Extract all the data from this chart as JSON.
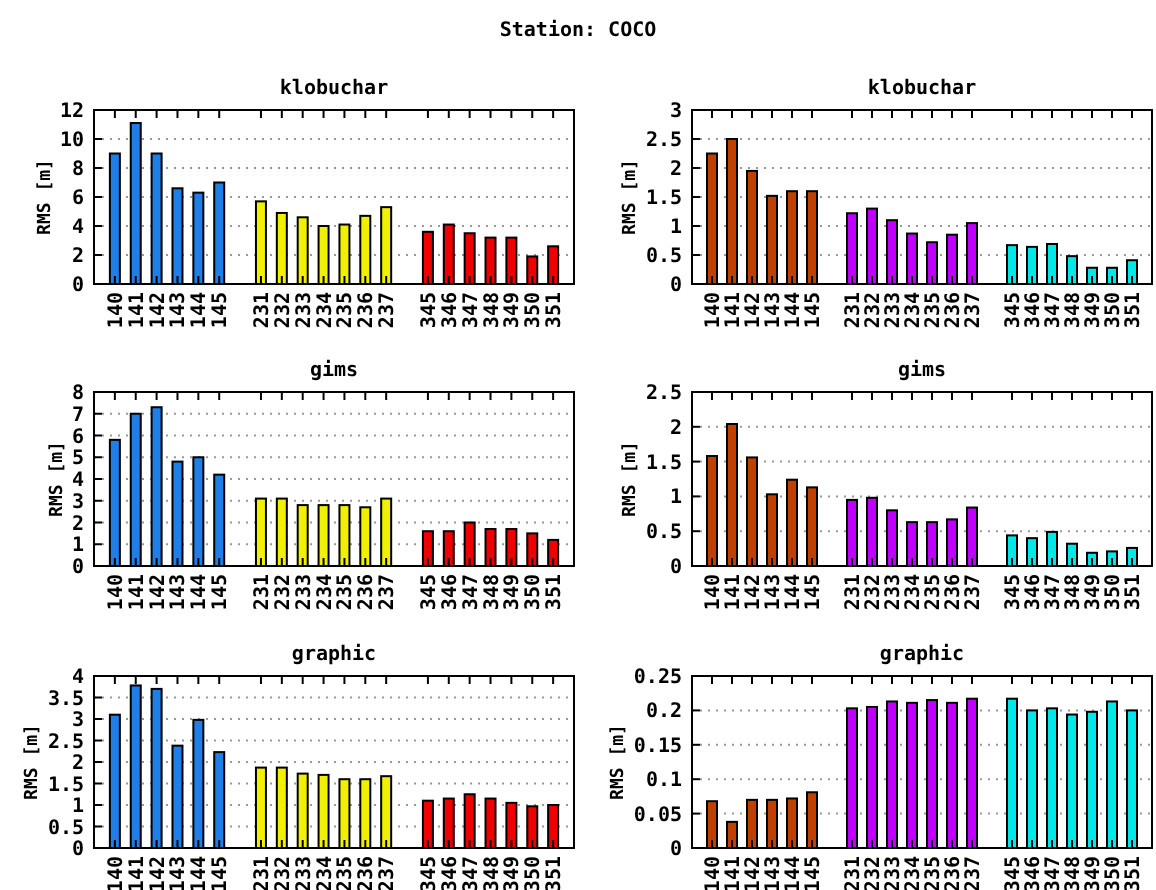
{
  "chart_data": [
    {
      "type": "bar",
      "title": "klobuchar",
      "ylabel": "RMS [m]",
      "annotations": [
        "Station: COCO"
      ],
      "grid": "y",
      "categories": [
        "140",
        "141",
        "142",
        "143",
        "144",
        "145",
        null,
        "231",
        "232",
        "233",
        "234",
        "235",
        "236",
        "237",
        null,
        "345",
        "346",
        "347",
        "348",
        "349",
        "350",
        "351"
      ],
      "ylim": [
        0,
        12
      ],
      "yticks": [
        0,
        2,
        4,
        6,
        8,
        10,
        12
      ],
      "series": [
        {
          "color": "#1e7fe8",
          "values": [
            9.0,
            11.1,
            9.0,
            6.6,
            6.3,
            7.0,
            null,
            null,
            null,
            null,
            null,
            null,
            null,
            null,
            null,
            null,
            null,
            null,
            null,
            null,
            null,
            null
          ]
        },
        {
          "color": "#f0f000",
          "values": [
            null,
            null,
            null,
            null,
            null,
            null,
            null,
            5.7,
            4.9,
            4.6,
            4.0,
            4.1,
            4.7,
            5.3,
            null,
            null,
            null,
            null,
            null,
            null,
            null,
            null
          ]
        },
        {
          "color": "#f00000",
          "values": [
            null,
            null,
            null,
            null,
            null,
            null,
            null,
            null,
            null,
            null,
            null,
            null,
            null,
            null,
            null,
            3.6,
            4.1,
            3.5,
            3.2,
            3.2,
            1.9,
            2.6
          ]
        }
      ]
    },
    {
      "type": "bar",
      "title": "klobuchar",
      "ylabel": "RMS [m]",
      "grid": "y",
      "categories": [
        "140",
        "141",
        "142",
        "143",
        "144",
        "145",
        null,
        "231",
        "232",
        "233",
        "234",
        "235",
        "236",
        "237",
        null,
        "345",
        "346",
        "347",
        "348",
        "349",
        "350",
        "351"
      ],
      "ylim": [
        0,
        3
      ],
      "yticks": [
        0,
        0.5,
        1,
        1.5,
        2,
        2.5,
        3
      ],
      "series": [
        {
          "color": "#c04000",
          "values": [
            2.25,
            2.5,
            1.95,
            1.52,
            1.6,
            1.6,
            null,
            null,
            null,
            null,
            null,
            null,
            null,
            null,
            null,
            null,
            null,
            null,
            null,
            null,
            null,
            null
          ]
        },
        {
          "color": "#c000ff",
          "values": [
            null,
            null,
            null,
            null,
            null,
            null,
            null,
            1.22,
            1.3,
            1.1,
            0.87,
            0.72,
            0.85,
            1.05,
            null,
            null,
            null,
            null,
            null,
            null,
            null,
            null
          ]
        },
        {
          "color": "#00e8e8",
          "values": [
            null,
            null,
            null,
            null,
            null,
            null,
            null,
            null,
            null,
            null,
            null,
            null,
            null,
            null,
            null,
            0.67,
            0.64,
            0.69,
            0.48,
            0.28,
            0.28,
            0.41
          ]
        }
      ]
    },
    {
      "type": "bar",
      "title": "gims",
      "ylabel": "RMS [m]",
      "grid": "y",
      "categories": [
        "140",
        "141",
        "142",
        "143",
        "144",
        "145",
        null,
        "231",
        "232",
        "233",
        "234",
        "235",
        "236",
        "237",
        null,
        "345",
        "346",
        "347",
        "348",
        "349",
        "350",
        "351"
      ],
      "ylim": [
        0,
        8
      ],
      "yticks": [
        0,
        1,
        2,
        3,
        4,
        5,
        6,
        7,
        8
      ],
      "series": [
        {
          "color": "#1e7fe8",
          "values": [
            5.8,
            7.0,
            7.3,
            4.8,
            5.0,
            4.2,
            null,
            null,
            null,
            null,
            null,
            null,
            null,
            null,
            null,
            null,
            null,
            null,
            null,
            null,
            null,
            null
          ]
        },
        {
          "color": "#f0f000",
          "values": [
            null,
            null,
            null,
            null,
            null,
            null,
            null,
            3.1,
            3.1,
            2.8,
            2.8,
            2.8,
            2.7,
            3.1,
            null,
            null,
            null,
            null,
            null,
            null,
            null,
            null
          ]
        },
        {
          "color": "#f00000",
          "values": [
            null,
            null,
            null,
            null,
            null,
            null,
            null,
            null,
            null,
            null,
            null,
            null,
            null,
            null,
            null,
            1.6,
            1.6,
            2.0,
            1.7,
            1.7,
            1.5,
            1.2
          ]
        }
      ]
    },
    {
      "type": "bar",
      "title": "gims",
      "ylabel": "RMS [m]",
      "grid": "y",
      "categories": [
        "140",
        "141",
        "142",
        "143",
        "144",
        "145",
        null,
        "231",
        "232",
        "233",
        "234",
        "235",
        "236",
        "237",
        null,
        "345",
        "346",
        "347",
        "348",
        "349",
        "350",
        "351"
      ],
      "ylim": [
        0,
        2.5
      ],
      "yticks": [
        0,
        0.5,
        1,
        1.5,
        2,
        2.5
      ],
      "series": [
        {
          "color": "#c04000",
          "values": [
            1.58,
            2.04,
            1.56,
            1.03,
            1.24,
            1.13,
            null,
            null,
            null,
            null,
            null,
            null,
            null,
            null,
            null,
            null,
            null,
            null,
            null,
            null,
            null,
            null
          ]
        },
        {
          "color": "#c000ff",
          "values": [
            null,
            null,
            null,
            null,
            null,
            null,
            null,
            0.95,
            0.98,
            0.8,
            0.63,
            0.63,
            0.67,
            0.84,
            null,
            null,
            null,
            null,
            null,
            null,
            null,
            null
          ]
        },
        {
          "color": "#00e8e8",
          "values": [
            null,
            null,
            null,
            null,
            null,
            null,
            null,
            null,
            null,
            null,
            null,
            null,
            null,
            null,
            null,
            0.44,
            0.4,
            0.49,
            0.32,
            0.19,
            0.21,
            0.26
          ]
        }
      ]
    },
    {
      "type": "bar",
      "title": "graphic",
      "ylabel": "RMS [m]",
      "grid": "y",
      "categories": [
        "140",
        "141",
        "142",
        "143",
        "144",
        "145",
        null,
        "231",
        "232",
        "233",
        "234",
        "235",
        "236",
        "237",
        null,
        "345",
        "346",
        "347",
        "348",
        "349",
        "350",
        "351"
      ],
      "ylim": [
        0,
        4
      ],
      "yticks": [
        0,
        0.5,
        1,
        1.5,
        2,
        2.5,
        3,
        3.5,
        4
      ],
      "series": [
        {
          "color": "#1e7fe8",
          "values": [
            3.1,
            3.78,
            3.7,
            2.38,
            2.98,
            2.23,
            null,
            null,
            null,
            null,
            null,
            null,
            null,
            null,
            null,
            null,
            null,
            null,
            null,
            null,
            null,
            null
          ]
        },
        {
          "color": "#f0f000",
          "values": [
            null,
            null,
            null,
            null,
            null,
            null,
            null,
            1.87,
            1.87,
            1.73,
            1.7,
            1.6,
            1.6,
            1.67,
            null,
            null,
            null,
            null,
            null,
            null,
            null,
            null
          ]
        },
        {
          "color": "#f00000",
          "values": [
            null,
            null,
            null,
            null,
            null,
            null,
            null,
            null,
            null,
            null,
            null,
            null,
            null,
            null,
            null,
            1.1,
            1.15,
            1.25,
            1.15,
            1.05,
            0.97,
            1.0
          ]
        }
      ]
    },
    {
      "type": "bar",
      "title": "graphic",
      "ylabel": "RMS [m]",
      "grid": "y",
      "categories": [
        "140",
        "141",
        "142",
        "143",
        "144",
        "145",
        null,
        "231",
        "232",
        "233",
        "234",
        "235",
        "236",
        "237",
        null,
        "345",
        "346",
        "347",
        "348",
        "349",
        "350",
        "351"
      ],
      "ylim": [
        0,
        0.25
      ],
      "yticks": [
        0,
        0.05,
        0.1,
        0.15,
        0.2,
        0.25
      ],
      "series": [
        {
          "color": "#c04000",
          "values": [
            0.068,
            0.038,
            0.07,
            0.07,
            0.072,
            0.081,
            null,
            null,
            null,
            null,
            null,
            null,
            null,
            null,
            null,
            null,
            null,
            null,
            null,
            null,
            null,
            null
          ]
        },
        {
          "color": "#c000ff",
          "values": [
            null,
            null,
            null,
            null,
            null,
            null,
            null,
            0.203,
            0.205,
            0.213,
            0.211,
            0.215,
            0.211,
            0.217,
            null,
            null,
            null,
            null,
            null,
            null,
            null,
            null
          ]
        },
        {
          "color": "#00e8e8",
          "values": [
            null,
            null,
            null,
            null,
            null,
            null,
            null,
            null,
            null,
            null,
            null,
            null,
            null,
            null,
            null,
            0.217,
            0.2,
            0.203,
            0.194,
            0.198,
            0.213,
            0.2
          ]
        }
      ]
    }
  ]
}
